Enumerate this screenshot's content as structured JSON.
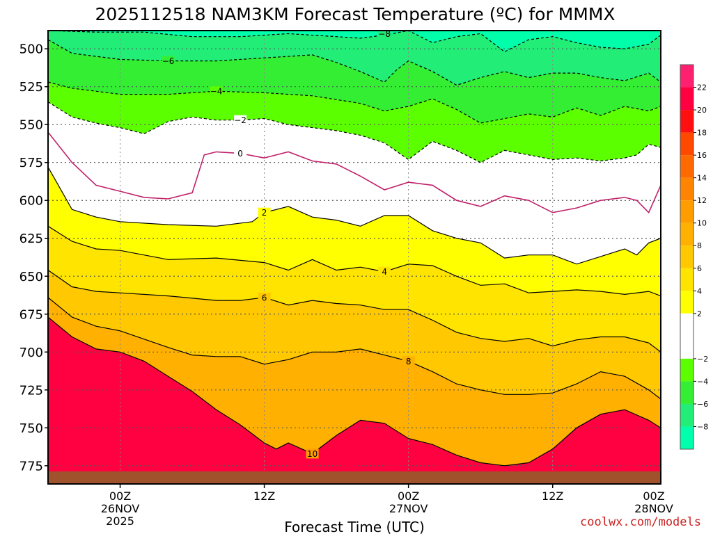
{
  "chart_data": {
    "type": "heatmap",
    "title": "2025112518 NAM3KM Forecast Temperature (ºC) for MMMX",
    "xlabel": "Forecast Time (UTC)",
    "ylabel": "",
    "credit": "coolwx.com/models",
    "x_unit": "forecast hour",
    "xlim": [
      -6,
      45
    ],
    "ylim": [
      787,
      488
    ],
    "y_ticks": [
      "500",
      "525",
      "550",
      "575",
      "600",
      "625",
      "650",
      "675",
      "700",
      "725",
      "750",
      "775"
    ],
    "x_ticks": [
      {
        "hour": 0,
        "line1": "00Z",
        "line2": "26NOV",
        "line3": "2025"
      },
      {
        "hour": 12,
        "line1": "12Z",
        "line2": "",
        "line3": ""
      },
      {
        "hour": 24,
        "line1": "00Z",
        "line2": "27NOV",
        "line3": ""
      },
      {
        "hour": 36,
        "line1": "12Z",
        "line2": "",
        "line3": ""
      },
      {
        "hour": 48,
        "line1": "00Z",
        "line2": "28NOV",
        "line3": ""
      }
    ],
    "colorbar": {
      "ticks": [
        "22",
        "20",
        "18",
        "16",
        "14",
        "12",
        "10",
        "8",
        "6",
        "4",
        "2",
        "−2",
        "−4",
        "−6",
        "−8"
      ],
      "bands": [
        {
          "from": 22,
          "to": 24,
          "color": "#ff2070"
        },
        {
          "from": 20,
          "to": 22,
          "color": "#ff0040"
        },
        {
          "from": 18,
          "to": 20,
          "color": "#ff1010"
        },
        {
          "from": 16,
          "to": 18,
          "color": "#ff4800"
        },
        {
          "from": 14,
          "to": 16,
          "color": "#ff6a00"
        },
        {
          "from": 12,
          "to": 14,
          "color": "#ff8400"
        },
        {
          "from": 10,
          "to": 12,
          "color": "#ff9c00"
        },
        {
          "from": 8,
          "to": 10,
          "color": "#ffb000"
        },
        {
          "from": 6,
          "to": 8,
          "color": "#ffc800"
        },
        {
          "from": 4,
          "to": 6,
          "color": "#ffe400"
        },
        {
          "from": 2,
          "to": 4,
          "color": "#ffff00"
        },
        {
          "from": -2,
          "to": 2,
          "color": "#ffffff"
        },
        {
          "from": -4,
          "to": -2,
          "color": "#5cff00"
        },
        {
          "from": -6,
          "to": -4,
          "color": "#33ee33"
        },
        {
          "from": -8,
          "to": -6,
          "color": "#22ee77"
        },
        {
          "from": -10,
          "to": -8,
          "color": "#00ffaa"
        }
      ]
    },
    "isotherms": [
      {
        "value": -8,
        "label": "−8",
        "dashed": true,
        "color": "#000000",
        "label_at": [
          22,
          490
        ],
        "points": [
          [
            -6,
            488
          ],
          [
            -2,
            489
          ],
          [
            2,
            489
          ],
          [
            6,
            492
          ],
          [
            10,
            492
          ],
          [
            14,
            490
          ],
          [
            18,
            492
          ],
          [
            20,
            493
          ],
          [
            22,
            491
          ],
          [
            24,
            488
          ],
          [
            26,
            496
          ],
          [
            28,
            492
          ],
          [
            30,
            490
          ],
          [
            32,
            502
          ],
          [
            34,
            494
          ],
          [
            36,
            492
          ],
          [
            38,
            496
          ],
          [
            40,
            499
          ],
          [
            42,
            500
          ],
          [
            44,
            497
          ],
          [
            45,
            491
          ]
        ]
      },
      {
        "value": -6,
        "label": "−6",
        "dashed": true,
        "color": "#000000",
        "label_at": [
          4,
          508
        ],
        "points": [
          [
            -6,
            494
          ],
          [
            -4,
            503
          ],
          [
            0,
            507
          ],
          [
            4,
            508
          ],
          [
            8,
            508
          ],
          [
            12,
            506
          ],
          [
            16,
            504
          ],
          [
            18,
            509
          ],
          [
            20,
            515
          ],
          [
            22,
            522
          ],
          [
            23,
            514
          ],
          [
            24,
            508
          ],
          [
            26,
            515
          ],
          [
            28,
            524
          ],
          [
            30,
            519
          ],
          [
            32,
            515
          ],
          [
            34,
            519
          ],
          [
            36,
            516
          ],
          [
            38,
            516
          ],
          [
            40,
            519
          ],
          [
            42,
            521
          ],
          [
            44,
            516
          ],
          [
            45,
            522
          ]
        ]
      },
      {
        "value": -4,
        "label": "−4",
        "dashed": true,
        "color": "#000000",
        "label_at": [
          8,
          528
        ],
        "points": [
          [
            -6,
            522
          ],
          [
            -4,
            526
          ],
          [
            0,
            530
          ],
          [
            4,
            530
          ],
          [
            8,
            528
          ],
          [
            12,
            529
          ],
          [
            16,
            531
          ],
          [
            20,
            536
          ],
          [
            22,
            541
          ],
          [
            24,
            538
          ],
          [
            26,
            533
          ],
          [
            28,
            540
          ],
          [
            30,
            549
          ],
          [
            32,
            546
          ],
          [
            34,
            543
          ],
          [
            36,
            545
          ],
          [
            38,
            539
          ],
          [
            40,
            544
          ],
          [
            42,
            538
          ],
          [
            44,
            541
          ],
          [
            45,
            538
          ]
        ]
      },
      {
        "value": -2,
        "label": "−2",
        "dashed": true,
        "color": "#000000",
        "label_at": [
          10,
          547
        ],
        "points": [
          [
            -6,
            535
          ],
          [
            -4,
            545
          ],
          [
            -2,
            549
          ],
          [
            0,
            552
          ],
          [
            2,
            556
          ],
          [
            4,
            548
          ],
          [
            6,
            545
          ],
          [
            8,
            547
          ],
          [
            10,
            547
          ],
          [
            12,
            546
          ],
          [
            14,
            550
          ],
          [
            18,
            554
          ],
          [
            20,
            557
          ],
          [
            22,
            562
          ],
          [
            24,
            573
          ],
          [
            26,
            561
          ],
          [
            28,
            567
          ],
          [
            30,
            575
          ],
          [
            32,
            567
          ],
          [
            34,
            570
          ],
          [
            36,
            573
          ],
          [
            38,
            572
          ],
          [
            40,
            574
          ],
          [
            42,
            572
          ],
          [
            43,
            570
          ],
          [
            44,
            563
          ],
          [
            45,
            565
          ]
        ]
      },
      {
        "value": 0,
        "label": "0",
        "dashed": false,
        "color": "#c0206a",
        "label_at": [
          10,
          569
        ],
        "points": [
          [
            -6,
            555
          ],
          [
            -4,
            575
          ],
          [
            -2,
            590
          ],
          [
            0,
            594
          ],
          [
            2,
            598
          ],
          [
            4,
            599
          ],
          [
            6,
            595
          ],
          [
            7,
            570
          ],
          [
            8,
            568
          ],
          [
            10,
            569
          ],
          [
            12,
            572
          ],
          [
            14,
            568
          ],
          [
            16,
            574
          ],
          [
            18,
            576
          ],
          [
            20,
            584
          ],
          [
            22,
            593
          ],
          [
            24,
            588
          ],
          [
            26,
            590
          ],
          [
            28,
            600
          ],
          [
            30,
            604
          ],
          [
            32,
            597
          ],
          [
            34,
            600
          ],
          [
            36,
            608
          ],
          [
            38,
            605
          ],
          [
            40,
            600
          ],
          [
            42,
            598
          ],
          [
            43,
            600
          ],
          [
            44,
            608
          ],
          [
            45,
            590
          ]
        ]
      },
      {
        "value": 2,
        "label": "2",
        "dashed": false,
        "color": "#000000",
        "label_at": [
          12,
          608
        ],
        "points": [
          [
            -6,
            578
          ],
          [
            -4,
            606
          ],
          [
            -2,
            611
          ],
          [
            0,
            614
          ],
          [
            4,
            616
          ],
          [
            8,
            617
          ],
          [
            11,
            614
          ],
          [
            12,
            608
          ],
          [
            14,
            604
          ],
          [
            16,
            611
          ],
          [
            18,
            613
          ],
          [
            20,
            617
          ],
          [
            22,
            610
          ],
          [
            24,
            610
          ],
          [
            26,
            620
          ],
          [
            28,
            625
          ],
          [
            30,
            628
          ],
          [
            32,
            638
          ],
          [
            34,
            636
          ],
          [
            36,
            636
          ],
          [
            38,
            642
          ],
          [
            40,
            637
          ],
          [
            42,
            632
          ],
          [
            43,
            636
          ],
          [
            44,
            628
          ],
          [
            45,
            625
          ]
        ]
      },
      {
        "value": 4,
        "label": "4",
        "dashed": false,
        "color": "#000000",
        "label_at": [
          22,
          647
        ],
        "points": [
          [
            -6,
            617
          ],
          [
            -4,
            627
          ],
          [
            -2,
            632
          ],
          [
            0,
            633
          ],
          [
            4,
            639
          ],
          [
            8,
            638
          ],
          [
            12,
            641
          ],
          [
            14,
            646
          ],
          [
            16,
            639
          ],
          [
            18,
            646
          ],
          [
            20,
            644
          ],
          [
            22,
            647
          ],
          [
            24,
            642
          ],
          [
            26,
            643
          ],
          [
            28,
            650
          ],
          [
            30,
            656
          ],
          [
            32,
            655
          ],
          [
            34,
            661
          ],
          [
            36,
            660
          ],
          [
            38,
            659
          ],
          [
            40,
            660
          ],
          [
            42,
            662
          ],
          [
            44,
            660
          ],
          [
            45,
            663
          ]
        ]
      },
      {
        "value": 6,
        "label": "6",
        "dashed": false,
        "color": "#000000",
        "label_at": [
          12,
          664
        ],
        "points": [
          [
            -6,
            646
          ],
          [
            -4,
            657
          ],
          [
            -2,
            660
          ],
          [
            0,
            661
          ],
          [
            4,
            663
          ],
          [
            8,
            666
          ],
          [
            10,
            666
          ],
          [
            12,
            664
          ],
          [
            14,
            669
          ],
          [
            16,
            666
          ],
          [
            18,
            668
          ],
          [
            20,
            669
          ],
          [
            22,
            672
          ],
          [
            24,
            672
          ],
          [
            26,
            679
          ],
          [
            28,
            687
          ],
          [
            30,
            691
          ],
          [
            32,
            693
          ],
          [
            34,
            691
          ],
          [
            36,
            696
          ],
          [
            38,
            692
          ],
          [
            40,
            690
          ],
          [
            42,
            690
          ],
          [
            44,
            694
          ],
          [
            45,
            700
          ]
        ]
      },
      {
        "value": 8,
        "label": "8",
        "dashed": false,
        "color": "#000000",
        "label_at": [
          24,
          706
        ],
        "points": [
          [
            -6,
            664
          ],
          [
            -4,
            677
          ],
          [
            -2,
            683
          ],
          [
            0,
            686
          ],
          [
            4,
            697
          ],
          [
            6,
            702
          ],
          [
            8,
            703
          ],
          [
            10,
            703
          ],
          [
            12,
            708
          ],
          [
            14,
            705
          ],
          [
            16,
            700
          ],
          [
            18,
            700
          ],
          [
            20,
            698
          ],
          [
            22,
            702
          ],
          [
            24,
            706
          ],
          [
            26,
            713
          ],
          [
            28,
            721
          ],
          [
            30,
            725
          ],
          [
            32,
            728
          ],
          [
            34,
            728
          ],
          [
            36,
            727
          ],
          [
            38,
            721
          ],
          [
            40,
            713
          ],
          [
            42,
            716
          ],
          [
            44,
            725
          ],
          [
            45,
            731
          ]
        ]
      },
      {
        "value": 10,
        "label": "10",
        "dashed": false,
        "color": "#000000",
        "label_at": [
          16,
          767
        ],
        "points": [
          [
            -6,
            677
          ],
          [
            -4,
            690
          ],
          [
            -2,
            698
          ],
          [
            0,
            700
          ],
          [
            2,
            706
          ],
          [
            4,
            716
          ],
          [
            6,
            726
          ],
          [
            8,
            738
          ],
          [
            10,
            748
          ],
          [
            12,
            760
          ],
          [
            13,
            764
          ],
          [
            14,
            760
          ],
          [
            16,
            767
          ],
          [
            18,
            755
          ],
          [
            20,
            745
          ],
          [
            22,
            747
          ],
          [
            24,
            757
          ],
          [
            26,
            761
          ],
          [
            28,
            768
          ],
          [
            30,
            773
          ],
          [
            32,
            775
          ],
          [
            34,
            773
          ],
          [
            36,
            764
          ],
          [
            38,
            750
          ],
          [
            40,
            741
          ],
          [
            42,
            738
          ],
          [
            44,
            745
          ],
          [
            45,
            750
          ]
        ]
      }
    ]
  }
}
